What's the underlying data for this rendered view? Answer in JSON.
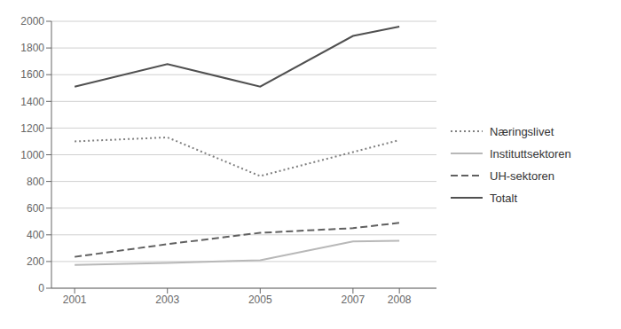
{
  "chart_data": {
    "type": "line",
    "x": [
      2001,
      2003,
      2005,
      2007,
      2008
    ],
    "series": [
      {
        "name": "Næringslivet",
        "color": "#808080",
        "line_style": "dotted",
        "values": [
          1100,
          1130,
          840,
          1020,
          1110
        ]
      },
      {
        "name": "Instituttsektoren",
        "color": "#b8b8b8",
        "line_style": "solid",
        "values": [
          175,
          190,
          210,
          350,
          355
        ]
      },
      {
        "name": "UH-sektoren",
        "color": "#606060",
        "line_style": "dashed",
        "values": [
          235,
          330,
          415,
          450,
          490
        ]
      },
      {
        "name": "Totalt",
        "color": "#505050",
        "line_style": "solid",
        "values": [
          1510,
          1680,
          1510,
          1890,
          1960
        ]
      }
    ],
    "xlim": [
      2000.5,
      2008.8
    ],
    "xticks": [
      2001,
      2003,
      2005,
      2007,
      2008
    ],
    "ylim": [
      0,
      2000
    ],
    "yticks": [
      0,
      200,
      400,
      600,
      800,
      1000,
      1200,
      1400,
      1600,
      1800,
      2000
    ],
    "grid": true,
    "legend": "right"
  }
}
